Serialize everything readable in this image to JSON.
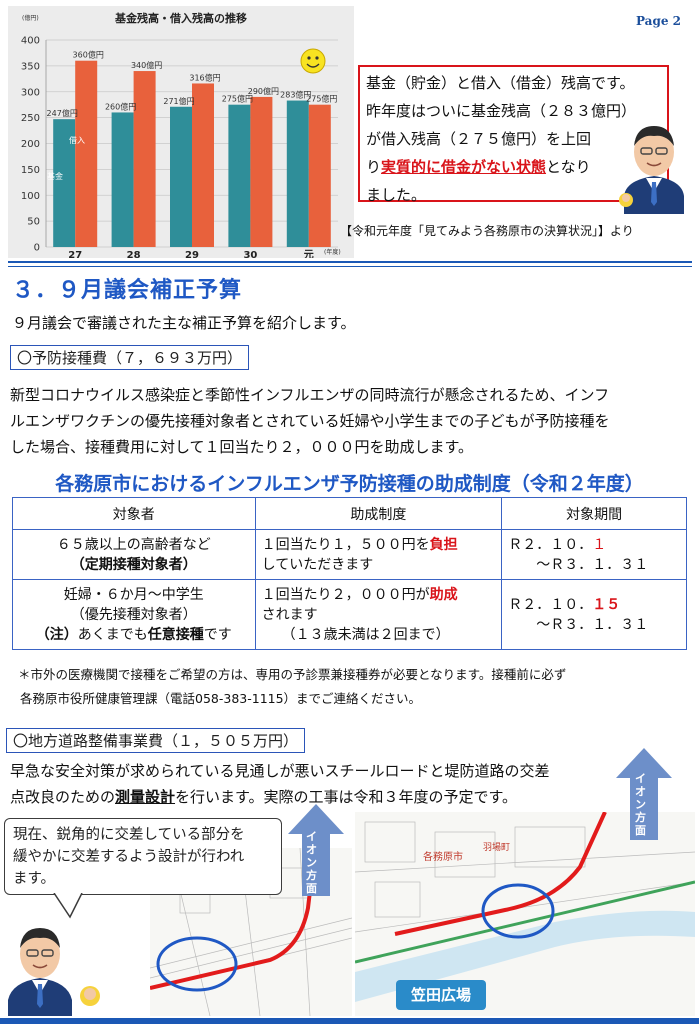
{
  "page": {
    "number": "Page 2"
  },
  "chart_data": {
    "type": "bar",
    "title": "基金残高・借入残高の推移",
    "unit_label": "(億円)",
    "categories": [
      "27",
      "28",
      "29",
      "30",
      "元"
    ],
    "x_unit": "(年度)",
    "ylim": [
      0,
      400
    ],
    "yticks": [
      "0",
      "50",
      "100",
      "150",
      "200",
      "250",
      "300",
      "350",
      "400"
    ],
    "series": [
      {
        "name": "基金",
        "values": [
          247,
          260,
          271,
          275,
          283
        ],
        "labels": [
          "247億円",
          "260億円",
          "271億円",
          "275億円",
          "283億円"
        ],
        "color": "#2f8e99"
      },
      {
        "name": "借入",
        "values": [
          360,
          340,
          316,
          290,
          275
        ],
        "labels": [
          "360億円",
          "340億円",
          "316億円",
          "290億円",
          "275億円"
        ],
        "color": "#e8613c"
      }
    ],
    "grid": true
  },
  "callout": {
    "line1": "基金（貯金）と借入（借金）残高です。",
    "line2": "昨年度はついに基金残高（２８３億円）",
    "line3": "が借入残高（２７５億円）を上回",
    "line4_pre": "り",
    "line4_red": "実質的に借金がない状態",
    "line4_post": "となり",
    "line5": "ました。"
  },
  "source_note": "【令和元年度「見てみよう各務原市の決算状況」】より",
  "section": {
    "title": "３．９月議会補正予算",
    "intro": "９月議会で審議された主な補正予算を紹介します。"
  },
  "vaccine": {
    "heading": "〇予防接種費（７，６９３万円）",
    "para1": "新型コロナウイルス感染症と季節性インフルエンザの同時流行が懸念されるため、インフ",
    "para2": "ルエンザワクチンの優先接種対象者とされている妊婦や小学生までの子どもが予防接種を",
    "para3": "した場合、接種費用に対して１回当たり２，０００円を助成します。",
    "table_title": "各務原市におけるインフルエンザ予防接種の助成制度（令和２年度）",
    "headers": [
      "対象者",
      "助成制度",
      "対象期間"
    ],
    "row1": {
      "target_line1": "６５歳以上の高齢者など",
      "target_line2": "（定期接種対象者）",
      "subsidy_pre": "１回当たり１，５００円を",
      "subsidy_red": "負担",
      "subsidy_post": "していただきます",
      "period_pre": "Ｒ２．１０．",
      "period_red": "１",
      "period_line2": "～Ｒ３．１．３１"
    },
    "row2": {
      "target_line1": "妊婦・６か月～中学生",
      "target_line2": "（優先接種対象者）",
      "target_note_bold": "（注）",
      "target_note_mid": "あくまでも",
      "target_note_bold2": "任意接種",
      "target_note_end": "です",
      "subsidy_pre": "１回当たり２，０００円が",
      "subsidy_red": "助成",
      "subsidy_line2": "されます",
      "subsidy_line3": "（１３歳未満は２回まで）",
      "period_pre": "Ｒ２．１０．",
      "period_red": "１５",
      "period_line2": "～Ｒ３．１．３１"
    },
    "footnote1": "＊市外の医療機関で接種をご希望の方は、専用の予診票兼接種券が必要となります。接種前に必ず",
    "footnote2": "各務原市役所健康管理課（電話058-383-1115）までご連絡ください。"
  },
  "road": {
    "heading": "〇地方道路整備事業費（１，５０５万円）",
    "para1": "早急な安全対策が求められている見通しが悪いスチールロードと堤防道路の交差",
    "para2_pre": "点改良のための",
    "para2_bold": "測量設計",
    "para2_post": "を行います。実際の工事は令和３年度の予定です。",
    "speech1": "現在、鋭角的に交差している部分を",
    "speech2": "緩やかに交差するよう設計が行われ",
    "speech3": "ます。",
    "arrow_label": "イオン方面",
    "place_label": "笠田広場",
    "map_label1": "各務原市",
    "map_label2": "羽場町"
  },
  "colors": {
    "accent_blue": "#1f58c4",
    "accent_red": "#d9141a"
  }
}
